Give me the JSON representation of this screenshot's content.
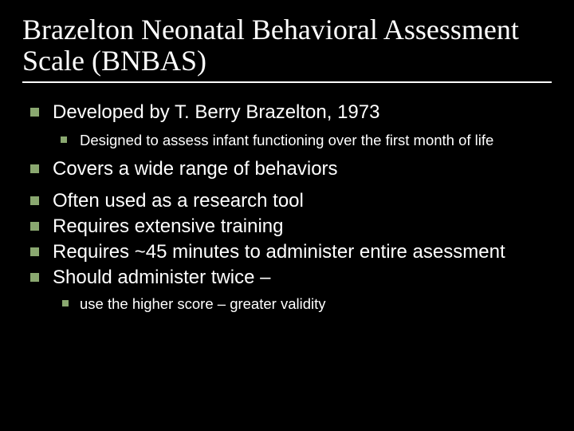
{
  "colors": {
    "background": "#000000",
    "text": "#ffffff",
    "bullet": "#8aa870",
    "underline": "#ffffff"
  },
  "typography": {
    "title_family": "Times New Roman",
    "title_size_pt": 36,
    "body_family": "Arial",
    "lvl1_size_pt": 24,
    "lvl2_size_pt": 18.5,
    "lvl3_size_pt": 18.5
  },
  "title": "Brazelton Neonatal Behavioral Assessment Scale (BNBAS)",
  "bullets": {
    "b1": {
      "text": "Developed by T. Berry Brazelton, 1973",
      "sub": [
        "Designed to assess infant functioning over the first month of life"
      ]
    },
    "b2": {
      "text": "Covers a wide range of behaviors"
    },
    "b3": {
      "text": "Often used as a research tool"
    },
    "b4": {
      "text": "Requires extensive training"
    },
    "b5": {
      "text": "Requires ~45 minutes to administer entire asessment"
    },
    "b6": {
      "text": "Should administer twice –",
      "sub": [
        "use the higher score – greater validity"
      ]
    }
  }
}
